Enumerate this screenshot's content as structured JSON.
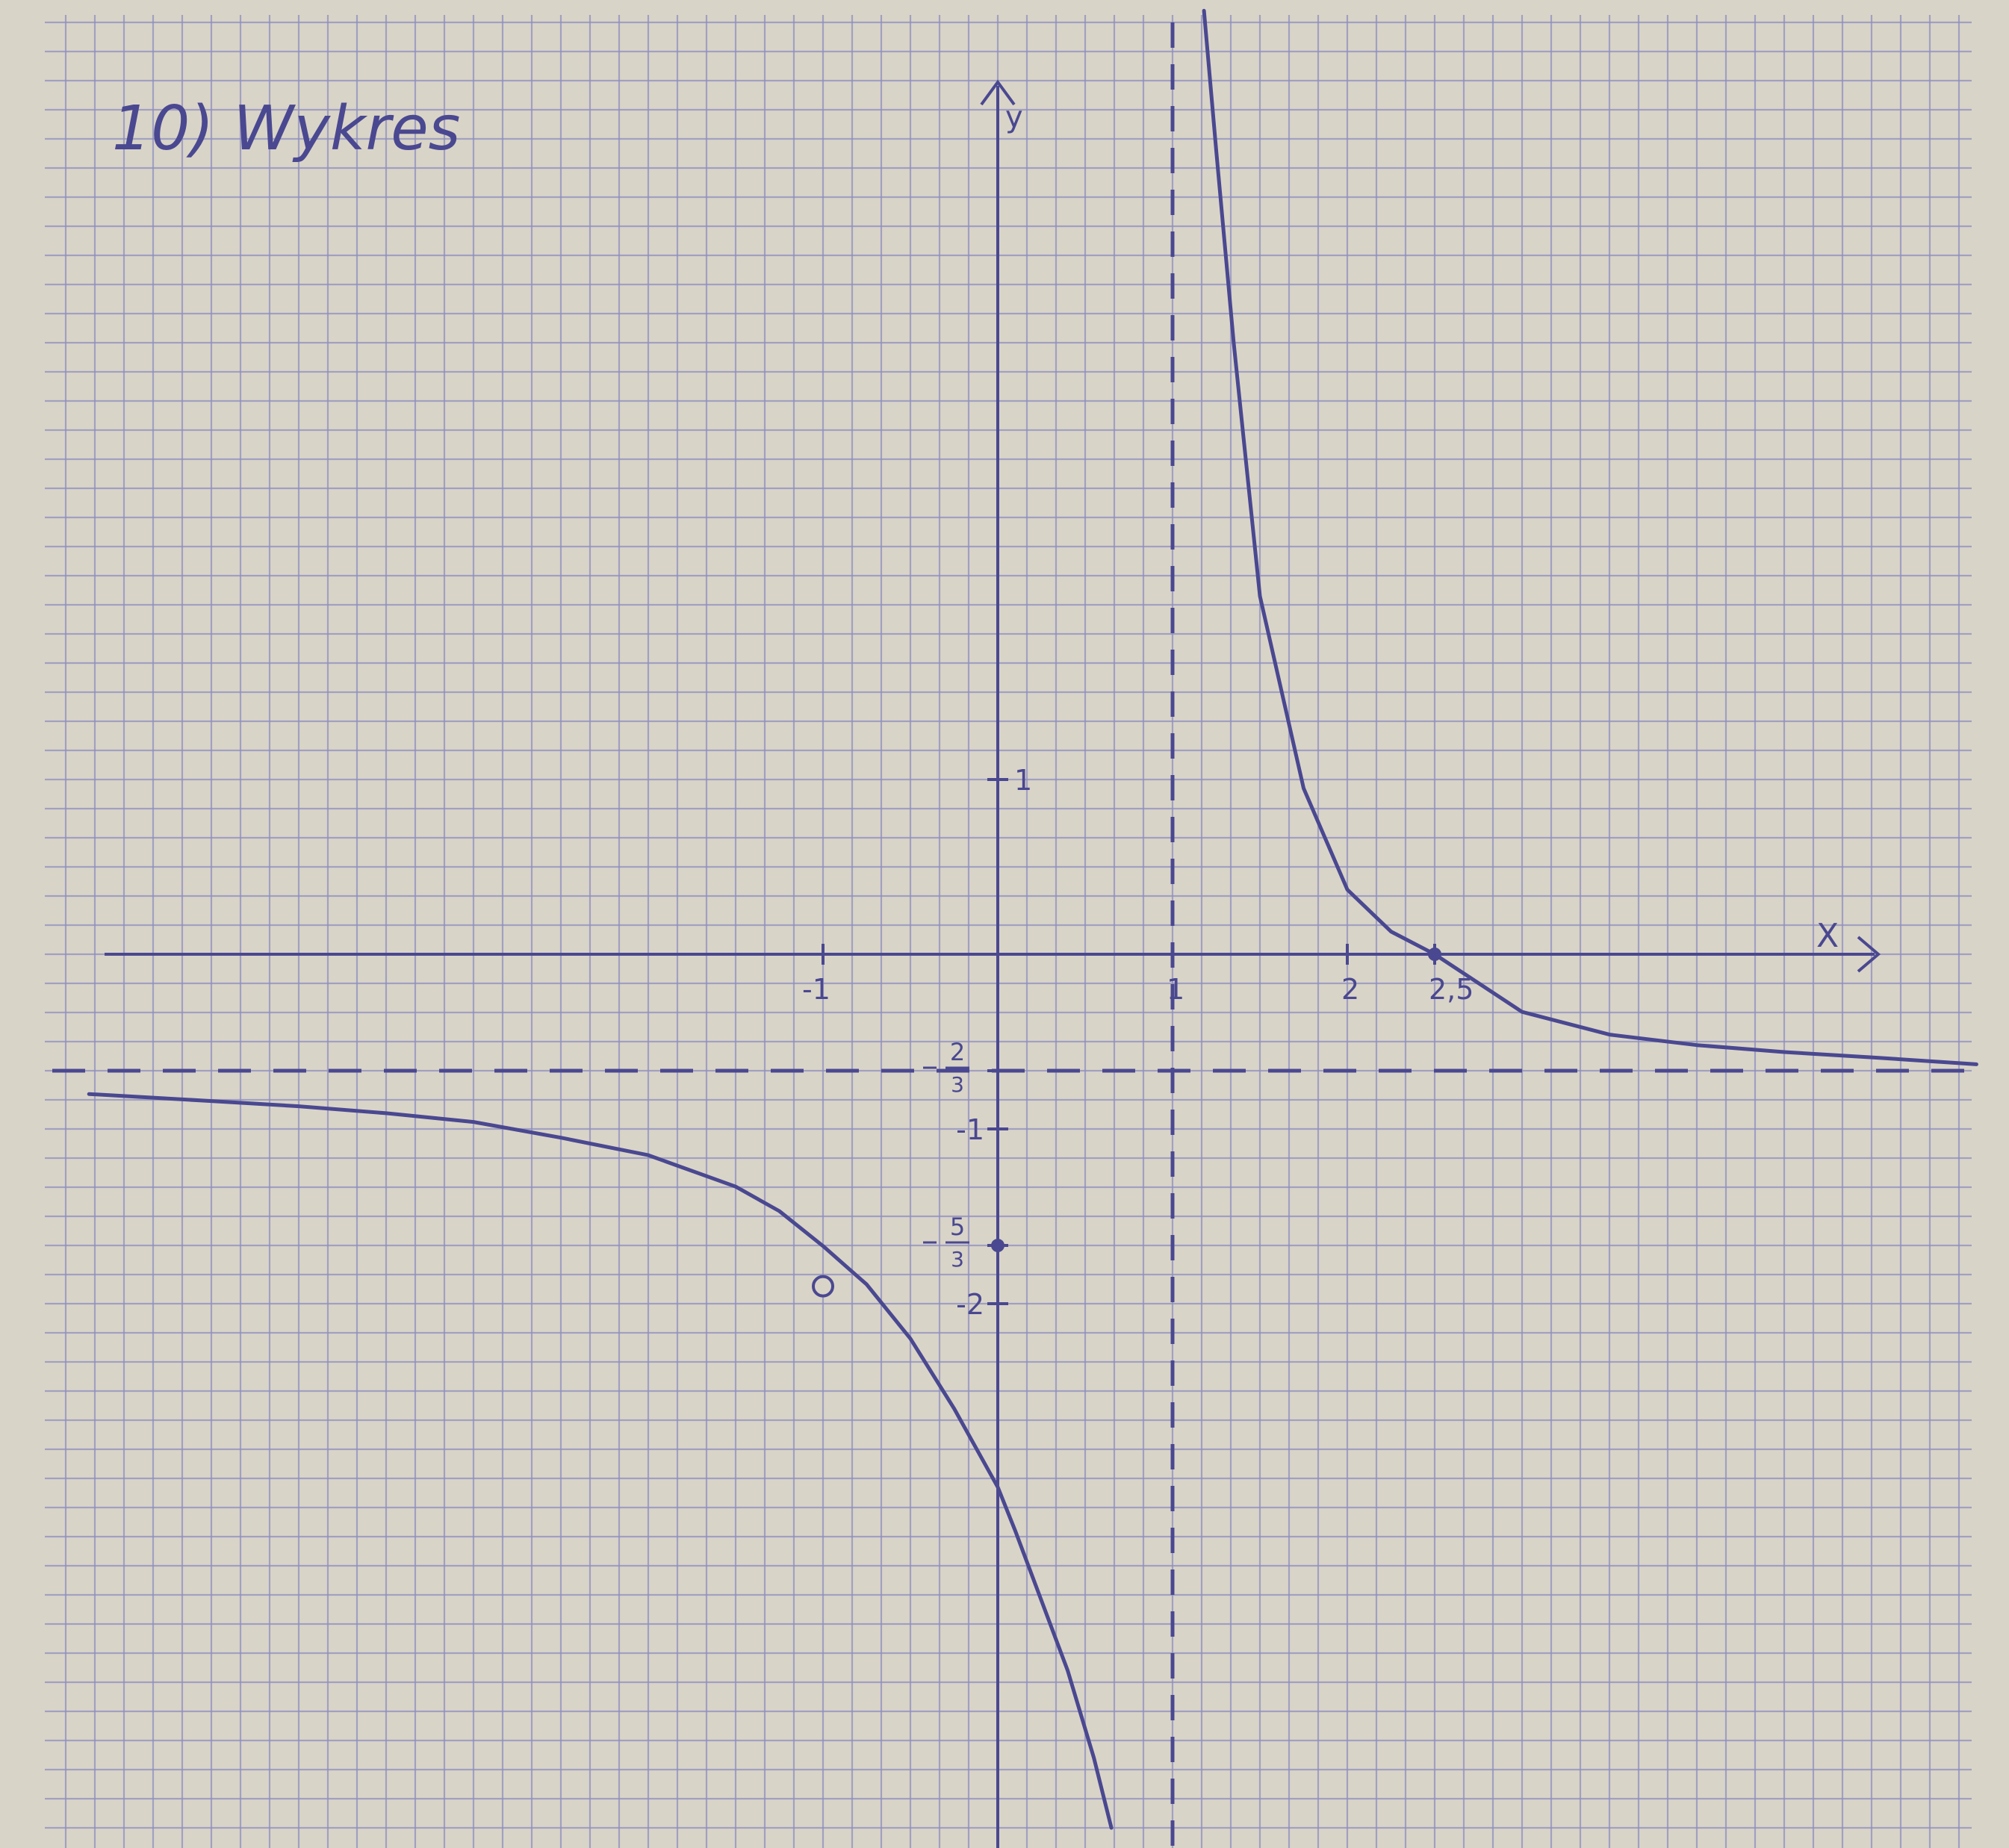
{
  "heading": "10) Wykres",
  "chart_data": {
    "type": "line",
    "title": "10) Wykres",
    "xlabel": "X",
    "ylabel": "y",
    "x_tick_labels": [
      "-1",
      "1",
      "2",
      "2,5"
    ],
    "y_tick_labels": [
      {
        "value": 1,
        "label": "1"
      },
      {
        "value": -0.6667,
        "label": "-2/3",
        "num": "2",
        "den": "3"
      },
      {
        "value": -1,
        "label": "-1"
      },
      {
        "value": -1.6667,
        "label": "-5/3",
        "num": "5",
        "den": "3"
      },
      {
        "value": -2,
        "label": "-2"
      }
    ],
    "xlim": [
      -5.2,
      5.6
    ],
    "ylim": [
      -5,
      5.4
    ],
    "asymptotes": {
      "vertical_x": 1,
      "horizontal_y": -0.6667
    },
    "series": [
      {
        "name": "",
        "branches": [
          {
            "x": [
              -5.2,
              -4.5,
              -4,
              -3.5,
              -3,
              -2.5,
              -2,
              -1.5,
              -1.25,
              -1,
              -0.75,
              -0.5,
              -0.25,
              0,
              0.1,
              0.25,
              0.4,
              0.55,
              0.65
            ],
            "y": [
              -0.8,
              -0.84,
              -0.87,
              -0.91,
              -0.96,
              -1.05,
              -1.15,
              -1.33,
              -1.47,
              -1.67,
              -1.89,
              -2.2,
              -2.6,
              -3.05,
              -3.3,
              -3.7,
              -4.1,
              -4.6,
              -5.0
            ]
          },
          {
            "x": [
              1.18,
              1.25,
              1.35,
              1.5,
              1.75,
              2,
              2.25,
              2.5,
              3,
              3.5,
              4,
              4.5,
              5,
              5.6
            ],
            "y": [
              5.4,
              4.6,
              3.5,
              2.05,
              0.95,
              0.37,
              0.13,
              0.0,
              -0.33,
              -0.46,
              -0.52,
              -0.56,
              -0.59,
              -0.63
            ]
          }
        ]
      }
    ],
    "points": [
      {
        "x": -1,
        "y": -1.9,
        "style": "open"
      },
      {
        "x": 0,
        "y": -1.6667,
        "style": "filled"
      },
      {
        "x": 2.5,
        "y": 0,
        "style": "filled"
      }
    ],
    "grid": true,
    "colors": {
      "paper": "#d9d4c8",
      "grid": "#8f8fbf",
      "ink": "#4a4890"
    }
  }
}
